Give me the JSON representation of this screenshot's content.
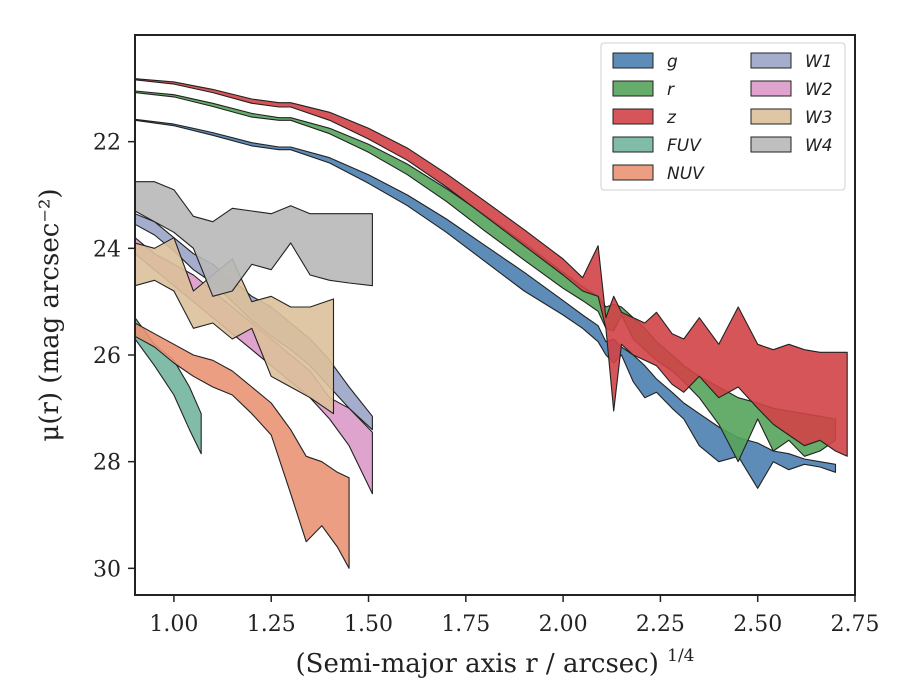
{
  "chart_data": {
    "type": "area",
    "xlabel": "(Semi-major axis r / arcsec)",
    "xlabel_exponent": "1/4",
    "ylabel": "μ(r) (mag arcsec⁻²)",
    "xlim": [
      0.9,
      2.75
    ],
    "ylim": [
      30.5,
      20.0
    ],
    "y_inverted": true,
    "grid": false,
    "legend_position": "top-right",
    "legend_columns": 2,
    "x_ticks": [
      "1.00",
      "1.25",
      "1.50",
      "1.75",
      "2.00",
      "2.25",
      "2.50",
      "2.75"
    ],
    "y_ticks": [
      "22",
      "24",
      "26",
      "28",
      "30"
    ],
    "series": [
      {
        "name": "g",
        "color": "#4c7fb0",
        "x": [
          0.9,
          1.0,
          1.1,
          1.2,
          1.27,
          1.3,
          1.4,
          1.5,
          1.6,
          1.7,
          1.8,
          1.9,
          2.0,
          2.05,
          2.09,
          2.11,
          2.13,
          2.15,
          2.18,
          2.21,
          2.24,
          2.28,
          2.31,
          2.35,
          2.4,
          2.45,
          2.5,
          2.54,
          2.58,
          2.62,
          2.66,
          2.7
        ],
        "low": [
          21.58,
          21.67,
          21.83,
          22.02,
          22.1,
          22.1,
          22.3,
          22.62,
          23.0,
          23.45,
          23.95,
          24.45,
          24.98,
          25.25,
          25.45,
          25.75,
          25.7,
          25.85,
          26.0,
          26.2,
          26.45,
          26.7,
          26.9,
          27.1,
          27.35,
          27.55,
          27.65,
          27.8,
          27.85,
          27.95,
          28.0,
          28.05
        ],
        "high": [
          21.6,
          21.7,
          21.88,
          22.08,
          22.15,
          22.15,
          22.4,
          22.78,
          23.2,
          23.7,
          24.25,
          24.8,
          25.25,
          25.5,
          25.75,
          26.0,
          26.15,
          26.0,
          26.5,
          26.8,
          26.7,
          27.0,
          27.2,
          27.7,
          28.0,
          27.9,
          28.5,
          28.0,
          28.15,
          28.05,
          28.1,
          28.2
        ]
      },
      {
        "name": "r",
        "color": "#55a35a",
        "x": [
          0.9,
          1.0,
          1.1,
          1.2,
          1.27,
          1.3,
          1.4,
          1.5,
          1.6,
          1.7,
          1.8,
          1.9,
          2.0,
          2.05,
          2.09,
          2.11,
          2.13,
          2.15,
          2.18,
          2.21,
          2.24,
          2.28,
          2.31,
          2.35,
          2.4,
          2.45,
          2.5,
          2.54,
          2.58,
          2.62,
          2.66,
          2.7
        ],
        "low": [
          21.05,
          21.12,
          21.28,
          21.47,
          21.55,
          21.55,
          21.75,
          22.05,
          22.42,
          22.88,
          23.38,
          23.9,
          24.45,
          24.72,
          24.9,
          25.1,
          25.05,
          25.1,
          25.3,
          25.5,
          25.75,
          26.0,
          26.2,
          26.4,
          26.6,
          26.8,
          26.9,
          27.0,
          27.05,
          27.1,
          27.15,
          27.2
        ],
        "high": [
          21.08,
          21.16,
          21.34,
          21.54,
          21.6,
          21.6,
          21.85,
          22.2,
          22.62,
          23.12,
          23.68,
          24.22,
          24.75,
          24.98,
          25.18,
          25.5,
          25.55,
          25.25,
          25.7,
          25.9,
          26.1,
          26.3,
          26.5,
          26.8,
          27.3,
          28.0,
          27.2,
          27.8,
          27.6,
          27.9,
          27.8,
          27.6
        ]
      },
      {
        "name": "z",
        "color": "#d04347",
        "x": [
          0.9,
          1.0,
          1.1,
          1.2,
          1.27,
          1.3,
          1.4,
          1.5,
          1.6,
          1.7,
          1.8,
          1.9,
          2.0,
          2.05,
          2.09,
          2.11,
          2.13,
          2.15,
          2.18,
          2.21,
          2.24,
          2.28,
          2.31,
          2.35,
          2.4,
          2.45,
          2.5,
          2.54,
          2.58,
          2.62,
          2.66,
          2.7,
          2.73
        ],
        "low": [
          20.82,
          20.88,
          21.02,
          21.2,
          21.27,
          21.27,
          21.45,
          21.75,
          22.12,
          22.6,
          23.12,
          23.65,
          24.2,
          24.55,
          23.95,
          25.3,
          24.9,
          25.2,
          25.3,
          25.4,
          25.2,
          25.6,
          25.7,
          25.3,
          25.8,
          25.1,
          25.8,
          25.9,
          25.8,
          25.9,
          25.95,
          25.95,
          25.95
        ],
        "high": [
          20.84,
          20.92,
          21.08,
          21.28,
          21.35,
          21.35,
          21.6,
          21.95,
          22.35,
          22.85,
          23.4,
          23.95,
          24.5,
          24.8,
          24.9,
          25.5,
          27.05,
          25.8,
          26.0,
          26.1,
          26.2,
          26.55,
          26.7,
          26.4,
          26.8,
          26.6,
          27.0,
          27.3,
          27.5,
          27.7,
          27.6,
          27.8,
          27.9
        ]
      },
      {
        "name": "FUV",
        "color": "#72b59e",
        "x": [
          0.9,
          0.95,
          1.0,
          1.04,
          1.07
        ],
        "low": [
          25.3,
          25.8,
          26.1,
          26.6,
          27.1
        ],
        "high": [
          25.7,
          26.2,
          26.75,
          27.4,
          27.85
        ]
      },
      {
        "name": "NUV",
        "color": "#e99474",
        "x": [
          0.9,
          0.95,
          1.0,
          1.05,
          1.1,
          1.15,
          1.2,
          1.25,
          1.3,
          1.34,
          1.38,
          1.42,
          1.45
        ],
        "low": [
          25.4,
          25.6,
          25.8,
          26.0,
          26.1,
          26.3,
          26.6,
          26.9,
          27.4,
          27.9,
          28.0,
          28.2,
          28.3
        ],
        "high": [
          25.65,
          25.85,
          26.15,
          26.4,
          26.6,
          26.75,
          27.1,
          27.5,
          28.6,
          29.5,
          29.2,
          29.6,
          30.0
        ]
      },
      {
        "name": "W1",
        "color": "#9aa4c6",
        "x": [
          0.9,
          0.95,
          1.0,
          1.05,
          1.1,
          1.15,
          1.2,
          1.25,
          1.3,
          1.35,
          1.4,
          1.45,
          1.51
        ],
        "low": [
          23.35,
          23.5,
          23.8,
          24.1,
          24.3,
          24.6,
          24.9,
          25.1,
          25.4,
          25.7,
          26.1,
          26.6,
          27.15
        ],
        "high": [
          23.55,
          23.75,
          24.05,
          24.4,
          24.65,
          25.0,
          25.35,
          25.65,
          25.9,
          26.2,
          26.6,
          27.0,
          27.4
        ]
      },
      {
        "name": "W2",
        "color": "#dc9ac8",
        "x": [
          0.9,
          0.95,
          1.0,
          1.05,
          1.1,
          1.15,
          1.2,
          1.25,
          1.3,
          1.35,
          1.4,
          1.45,
          1.51
        ],
        "low": [
          23.8,
          24.1,
          24.3,
          24.5,
          24.8,
          25.1,
          25.4,
          25.7,
          26.0,
          26.3,
          26.8,
          27.0,
          27.45
        ],
        "high": [
          24.1,
          24.4,
          24.7,
          25.0,
          25.3,
          25.6,
          25.9,
          26.2,
          26.5,
          26.8,
          27.2,
          27.7,
          28.6
        ]
      },
      {
        "name": "W3",
        "color": "#dcc09a",
        "x": [
          0.9,
          0.95,
          1.0,
          1.05,
          1.1,
          1.15,
          1.2,
          1.25,
          1.3,
          1.35,
          1.41
        ],
        "low": [
          23.9,
          24.0,
          23.8,
          24.8,
          24.5,
          24.2,
          25.0,
          24.9,
          25.1,
          25.1,
          24.95
        ],
        "high": [
          24.7,
          24.6,
          24.8,
          25.5,
          25.4,
          25.7,
          25.5,
          26.4,
          26.6,
          26.8,
          27.1
        ]
      },
      {
        "name": "W4",
        "color": "#b8b8b8",
        "x": [
          0.9,
          0.95,
          1.0,
          1.05,
          1.1,
          1.15,
          1.2,
          1.25,
          1.3,
          1.35,
          1.4,
          1.45,
          1.51
        ],
        "low": [
          22.75,
          22.75,
          22.9,
          23.4,
          23.5,
          23.25,
          23.3,
          23.35,
          23.2,
          23.35,
          23.35,
          23.35,
          23.35
        ],
        "high": [
          23.3,
          23.5,
          23.7,
          24.0,
          24.9,
          24.8,
          24.3,
          24.4,
          23.9,
          24.5,
          24.6,
          24.65,
          24.7
        ]
      }
    ]
  }
}
